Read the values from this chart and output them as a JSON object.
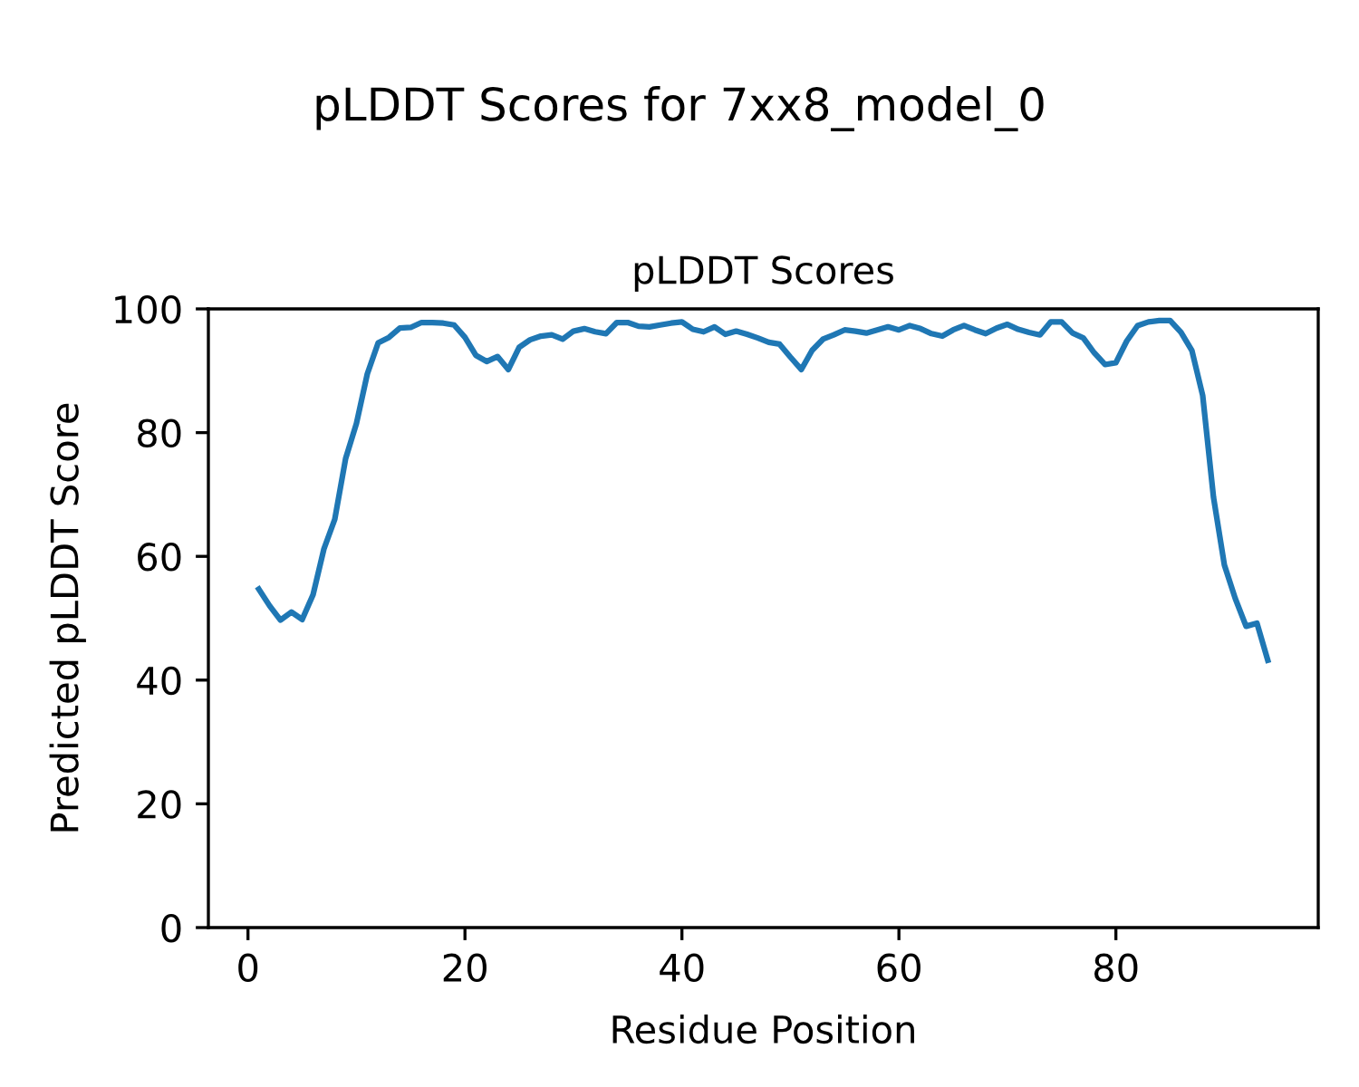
{
  "chart_data": {
    "type": "line",
    "title": "pLDDT Scores",
    "xlabel": "Residue Position",
    "ylabel": "Predicted pLDDT Score",
    "x": [
      1,
      2,
      3,
      4,
      5,
      6,
      7,
      8,
      9,
      10,
      11,
      12,
      13,
      14,
      15,
      16,
      17,
      18,
      19,
      20,
      21,
      22,
      23,
      24,
      25,
      26,
      27,
      28,
      29,
      30,
      31,
      32,
      33,
      34,
      35,
      36,
      37,
      38,
      39,
      40,
      41,
      42,
      43,
      44,
      45,
      46,
      47,
      48,
      49,
      50,
      51,
      52,
      53,
      54,
      55,
      56,
      57,
      58,
      59,
      60,
      61,
      62,
      63,
      64,
      65,
      66,
      67,
      68,
      69,
      70,
      71,
      72,
      73,
      74,
      75,
      76,
      77,
      78,
      79,
      80,
      81,
      82,
      83,
      84,
      85,
      86,
      87,
      88,
      89,
      90,
      91,
      92,
      93,
      94
    ],
    "series": [
      {
        "color": "#1f77b4",
        "values": [
          54.7,
          52,
          49.7,
          51,
          49.8,
          53.8,
          61.2,
          66,
          75.8,
          81.5,
          89.5,
          94.5,
          95.4,
          96.9,
          97.0,
          97.8,
          97.8,
          97.7,
          97.4,
          95.4,
          92.5,
          91.5,
          92.3,
          90.2,
          93.8,
          95.0,
          95.6,
          95.8,
          95.1,
          96.4,
          96.8,
          96.3,
          96.0,
          97.8,
          97.8,
          97.2,
          97.1,
          97.4,
          97.7,
          97.9,
          96.7,
          96.3,
          97.1,
          95.9,
          96.4,
          95.9,
          95.3,
          94.6,
          94.3,
          92.2,
          90.2,
          93.3,
          95.1,
          95.8,
          96.6,
          96.4,
          96.1,
          96.6,
          97.1,
          96.6,
          97.3,
          96.8,
          96.0,
          95.6,
          96.6,
          97.3,
          96.6,
          96.0,
          96.9,
          97.5,
          96.7,
          96.2,
          95.8,
          97.9,
          97.9,
          96.1,
          95.3,
          92.9,
          91.0,
          91.3,
          94.8,
          97.3,
          97.9,
          98.1,
          98.1,
          96.2,
          93.3,
          86.0,
          69.5,
          58.6,
          53.2,
          48.7,
          49.2,
          43.2
        ]
      }
    ],
    "xlim": [
      -3.65,
      98.65
    ],
    "xticks": [
      0,
      20,
      40,
      60,
      80
    ],
    "ylim": [
      0,
      100
    ],
    "yticks": [
      0,
      20,
      40,
      60,
      80,
      100
    ],
    "annotations": [
      "pLDDT Scores for 7xx8_model_0"
    ],
    "grid": false,
    "legend": false,
    "marker": "none",
    "line_style": "solid"
  }
}
